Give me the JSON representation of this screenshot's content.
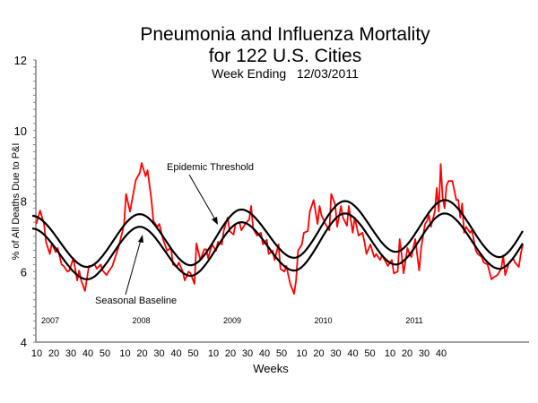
{
  "chart_data": {
    "type": "line",
    "title": "Pneumonia and Influenza Mortality",
    "title_line2": "for 122 U.S. Cities",
    "subtitle": "Week Ending   12/03/2011",
    "xlabel": "Weeks",
    "ylabel": "% of All Deaths Due to P&I",
    "ylim": [
      4,
      12
    ],
    "y_major_ticks": [
      4,
      6,
      8,
      10,
      12
    ],
    "y_minor_step": 0.2,
    "grid": false,
    "legend": "none",
    "year_labels": [
      "2007",
      "2008",
      "2009",
      "2010",
      "2011"
    ],
    "week_tick_labels": [
      "10",
      "20",
      "30",
      "40",
      "50"
    ],
    "last_year_week_tick_labels": [
      "10",
      "20",
      "30",
      "40"
    ],
    "annotations": {
      "threshold": "Epidemic Threshold",
      "baseline": "Seasonal Baseline"
    },
    "colors": {
      "observed": "#ff0000",
      "baseline": "#000000",
      "threshold": "#000000",
      "axis": "#808080"
    },
    "series": [
      {
        "key": "observed",
        "points_year_week_value": [
          [
            2007,
            3,
            7.35
          ],
          [
            2007,
            5,
            7.73
          ],
          [
            2007,
            7,
            7.35
          ],
          [
            2007,
            8,
            6.84
          ],
          [
            2007,
            10,
            6.5
          ],
          [
            2007,
            11,
            6.8
          ],
          [
            2007,
            13,
            6.55
          ],
          [
            2007,
            14,
            6.67
          ],
          [
            2007,
            16,
            6.2
          ],
          [
            2007,
            17,
            6.16
          ],
          [
            2007,
            19,
            6.0
          ],
          [
            2007,
            20,
            6.03
          ],
          [
            2007,
            22,
            6.38
          ],
          [
            2007,
            24,
            5.75
          ],
          [
            2007,
            25,
            6.03
          ],
          [
            2007,
            26,
            5.75
          ],
          [
            2007,
            28,
            5.45
          ],
          [
            2007,
            30,
            6.16
          ],
          [
            2007,
            31,
            6.16
          ],
          [
            2007,
            33,
            6.2
          ],
          [
            2007,
            34,
            6.08
          ],
          [
            2007,
            36,
            6.2
          ],
          [
            2007,
            37,
            6.03
          ],
          [
            2007,
            39,
            5.9
          ],
          [
            2007,
            40,
            6.0
          ],
          [
            2007,
            42,
            6.16
          ],
          [
            2007,
            43,
            6.33
          ],
          [
            2007,
            45,
            6.67
          ],
          [
            2007,
            47,
            7.1
          ],
          [
            2007,
            48,
            7.35
          ],
          [
            2007,
            49,
            8.2
          ],
          [
            2007,
            51,
            7.7
          ],
          [
            2008,
            1,
            8.3
          ],
          [
            2008,
            2,
            8.6
          ],
          [
            2008,
            4,
            8.8
          ],
          [
            2008,
            5,
            9.08
          ],
          [
            2008,
            7,
            8.7
          ],
          [
            2008,
            8,
            8.87
          ],
          [
            2008,
            10,
            8.03
          ],
          [
            2008,
            11,
            7.43
          ],
          [
            2008,
            13,
            7.27
          ],
          [
            2008,
            14,
            7.35
          ],
          [
            2008,
            16,
            6.9
          ],
          [
            2008,
            18,
            6.59
          ],
          [
            2008,
            20,
            6.67
          ],
          [
            2008,
            21,
            6.2
          ],
          [
            2008,
            23,
            6.13
          ],
          [
            2008,
            24,
            6.26
          ],
          [
            2008,
            26,
            6.0
          ],
          [
            2008,
            27,
            5.75
          ],
          [
            2008,
            29,
            6.0
          ],
          [
            2008,
            30,
            5.95
          ],
          [
            2008,
            32,
            5.65
          ],
          [
            2008,
            33,
            6.8
          ],
          [
            2008,
            35,
            6.33
          ],
          [
            2008,
            37,
            6.63
          ],
          [
            2008,
            38,
            6.63
          ],
          [
            2008,
            39,
            6.38
          ],
          [
            2008,
            41,
            6.77
          ],
          [
            2008,
            43,
            6.59
          ],
          [
            2008,
            44,
            6.84
          ],
          [
            2008,
            46,
            6.77
          ],
          [
            2008,
            47,
            7.17
          ],
          [
            2008,
            49,
            7.53
          ],
          [
            2008,
            50,
            7.15
          ],
          [
            2008,
            52,
            7.05
          ],
          [
            2009,
            1,
            7.35
          ],
          [
            2009,
            3,
            7.4
          ],
          [
            2009,
            4,
            7.17
          ],
          [
            2009,
            6,
            7.35
          ],
          [
            2009,
            8,
            7.48
          ],
          [
            2009,
            9,
            7.86
          ],
          [
            2009,
            10,
            7.22
          ],
          [
            2009,
            12,
            7.02
          ],
          [
            2009,
            14,
            7.1
          ],
          [
            2009,
            15,
            6.77
          ],
          [
            2009,
            17,
            6.9
          ],
          [
            2009,
            18,
            6.5
          ],
          [
            2009,
            20,
            6.59
          ],
          [
            2009,
            21,
            6.33
          ],
          [
            2009,
            23,
            6.77
          ],
          [
            2009,
            24,
            6.08
          ],
          [
            2009,
            26,
            6.0
          ],
          [
            2009,
            27,
            6.16
          ],
          [
            2009,
            29,
            5.65
          ],
          [
            2009,
            31,
            5.37
          ],
          [
            2009,
            32,
            5.75
          ],
          [
            2009,
            33,
            6.59
          ],
          [
            2009,
            35,
            6.77
          ],
          [
            2009,
            36,
            7.1
          ],
          [
            2009,
            38,
            7.15
          ],
          [
            2009,
            39,
            7.7
          ],
          [
            2009,
            41,
            8.03
          ],
          [
            2009,
            43,
            7.35
          ],
          [
            2009,
            44,
            7.86
          ],
          [
            2009,
            45,
            7.6
          ],
          [
            2009,
            47,
            7.35
          ],
          [
            2009,
            49,
            7.17
          ],
          [
            2009,
            50,
            8.2
          ],
          [
            2009,
            52,
            7.9
          ],
          [
            2010,
            1,
            7.27
          ],
          [
            2010,
            3,
            7.86
          ],
          [
            2010,
            4,
            7.53
          ],
          [
            2010,
            6,
            7.3
          ],
          [
            2010,
            7,
            7.86
          ],
          [
            2010,
            9,
            7.1
          ],
          [
            2010,
            10,
            7.53
          ],
          [
            2010,
            12,
            7.02
          ],
          [
            2010,
            14,
            7.1
          ],
          [
            2010,
            15,
            6.84
          ],
          [
            2010,
            16,
            6.5
          ],
          [
            2010,
            18,
            6.77
          ],
          [
            2010,
            20,
            6.41
          ],
          [
            2010,
            21,
            6.5
          ],
          [
            2010,
            23,
            6.33
          ],
          [
            2010,
            24,
            6.46
          ],
          [
            2010,
            26,
            6.26
          ],
          [
            2010,
            27,
            6.16
          ],
          [
            2010,
            29,
            6.33
          ],
          [
            2010,
            30,
            5.95
          ],
          [
            2010,
            32,
            6.0
          ],
          [
            2010,
            33,
            6.92
          ],
          [
            2010,
            34,
            6.5
          ],
          [
            2010,
            35,
            5.95
          ],
          [
            2010,
            37,
            6.67
          ],
          [
            2010,
            38,
            6.5
          ],
          [
            2010,
            39,
            6.41
          ],
          [
            2010,
            41,
            6.92
          ],
          [
            2010,
            43,
            6.03
          ],
          [
            2010,
            44,
            6.67
          ],
          [
            2010,
            46,
            7.35
          ],
          [
            2010,
            47,
            7.43
          ],
          [
            2010,
            48,
            7.6
          ],
          [
            2010,
            49,
            7.27
          ],
          [
            2010,
            51,
            7.7
          ],
          [
            2010,
            52,
            8.37
          ],
          [
            2011,
            1,
            7.7
          ],
          [
            2011,
            2,
            9.05
          ],
          [
            2011,
            3,
            8.1
          ],
          [
            2011,
            4,
            7.8
          ],
          [
            2011,
            5,
            8.44
          ],
          [
            2011,
            6,
            8.57
          ],
          [
            2011,
            8,
            8.57
          ],
          [
            2011,
            10,
            8.03
          ],
          [
            2011,
            11,
            8.03
          ],
          [
            2011,
            12,
            7.53
          ],
          [
            2011,
            13,
            7.93
          ],
          [
            2011,
            14,
            7.1
          ],
          [
            2011,
            15,
            7.27
          ],
          [
            2011,
            17,
            7.1
          ],
          [
            2011,
            18,
            7.17
          ],
          [
            2011,
            20,
            6.59
          ],
          [
            2011,
            21,
            6.5
          ],
          [
            2011,
            23,
            6.41
          ],
          [
            2011,
            24,
            6.26
          ],
          [
            2011,
            26,
            6.2
          ],
          [
            2011,
            28,
            5.78
          ],
          [
            2011,
            29,
            5.83
          ],
          [
            2011,
            31,
            5.9
          ],
          [
            2011,
            33,
            6.08
          ],
          [
            2011,
            34,
            6.46
          ],
          [
            2011,
            35,
            5.9
          ],
          [
            2011,
            37,
            6.26
          ],
          [
            2011,
            39,
            6.38
          ],
          [
            2011,
            40,
            6.26
          ],
          [
            2011,
            42,
            6.13
          ],
          [
            2011,
            43,
            6.5
          ],
          [
            2011,
            44,
            6.77
          ]
        ]
      },
      {
        "key": "threshold",
        "points_year_week_value": [
          [
            2007,
            1,
            7.58
          ],
          [
            2007,
            29,
            6.13
          ],
          [
            2008,
            4,
            7.63
          ],
          [
            2008,
            30,
            6.18
          ],
          [
            2009,
            4,
            7.76
          ],
          [
            2009,
            31,
            6.39
          ],
          [
            2010,
            5,
            8.0
          ],
          [
            2010,
            31,
            6.56
          ],
          [
            2011,
            4,
            8.03
          ],
          [
            2011,
            32,
            6.41
          ],
          [
            2011,
            44,
            7.15
          ]
        ]
      },
      {
        "key": "baseline",
        "points_year_week_value": [
          [
            2007,
            1,
            7.22
          ],
          [
            2007,
            29,
            5.78
          ],
          [
            2008,
            4,
            7.27
          ],
          [
            2008,
            30,
            5.88
          ],
          [
            2009,
            4,
            7.4
          ],
          [
            2009,
            31,
            6.03
          ],
          [
            2010,
            5,
            7.65
          ],
          [
            2010,
            31,
            6.2
          ],
          [
            2011,
            4,
            7.65
          ],
          [
            2011,
            32,
            6.08
          ],
          [
            2011,
            44,
            6.8
          ]
        ]
      }
    ]
  }
}
